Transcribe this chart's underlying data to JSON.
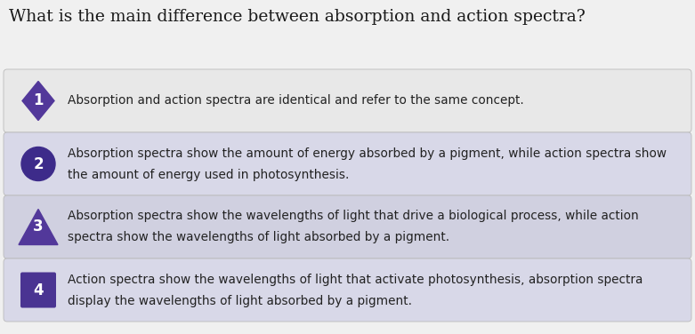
{
  "title": "What is the main difference between absorption and action spectra?",
  "title_fontsize": 13.5,
  "title_color": "#1a1a1a",
  "bg_color": "#f0f0f0",
  "card_colors": [
    "#e8e8e8",
    "#d8d8e8",
    "#d0d0e0",
    "#d8d8e8"
  ],
  "card_border_color": "#bbbbbb",
  "options": [
    {
      "number": "1",
      "shape": "diamond",
      "badge_color": "#52389a",
      "text_line1": "Absorption and action spectra are identical and refer to the same concept.",
      "text_line2": ""
    },
    {
      "number": "2",
      "shape": "circle",
      "badge_color": "#3d2b8a",
      "text_line1": "Absorption spectra show the amount of energy absorbed by a pigment, while action spectra show",
      "text_line2": "the amount of energy used in photosynthesis."
    },
    {
      "number": "3",
      "shape": "triangle",
      "badge_color": "#52389a",
      "text_line1": "Absorption spectra show the wavelengths of light that drive a biological process, while action",
      "text_line2": "spectra show the wavelengths of light absorbed by a pigment."
    },
    {
      "number": "4",
      "shape": "square",
      "badge_color": "#4a3492",
      "text_line1": "Action spectra show the wavelengths of light that activate photosynthesis, absorption spectra",
      "text_line2": "display the wavelengths of light absorbed by a pigment."
    }
  ],
  "text_color": "#222222",
  "text_fontsize": 9.8,
  "badge_text_color": "#ffffff",
  "badge_fontsize": 12
}
